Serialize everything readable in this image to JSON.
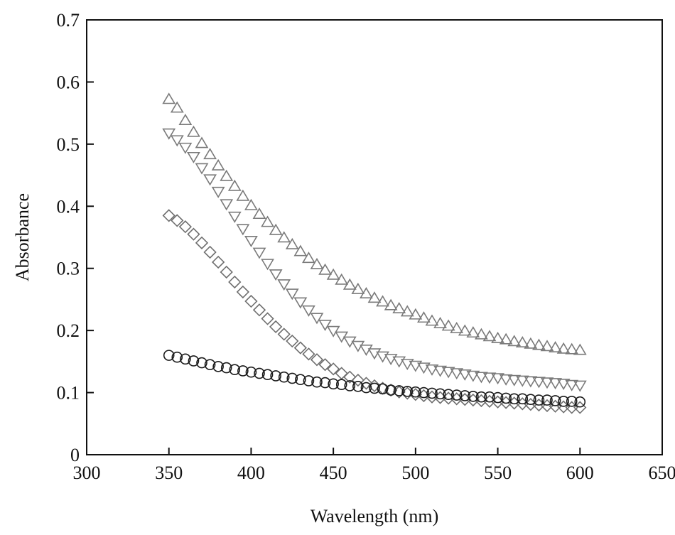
{
  "chart_data": {
    "type": "scatter",
    "title": "",
    "xlabel": "Wavelength (nm)",
    "ylabel": "Absorbance",
    "xlim": [
      300,
      650
    ],
    "ylim": [
      0,
      0.7
    ],
    "xticks": [
      300,
      350,
      400,
      450,
      500,
      550,
      600,
      650
    ],
    "yticks": [
      0,
      0.1,
      0.2,
      0.3,
      0.4,
      0.5,
      0.6,
      0.7
    ],
    "xtick_labels": [
      "300",
      "350",
      "400",
      "450",
      "500",
      "550",
      "600",
      "650"
    ],
    "ytick_labels": [
      "0",
      "0.1",
      "0.2",
      "0.3",
      "0.4",
      "0.5",
      "0.6",
      "0.7"
    ],
    "grid": false,
    "legend": "none",
    "x": [
      350,
      355,
      360,
      365,
      370,
      375,
      380,
      385,
      390,
      395,
      400,
      405,
      410,
      415,
      420,
      425,
      430,
      435,
      440,
      445,
      450,
      455,
      460,
      465,
      470,
      475,
      480,
      485,
      490,
      495,
      500,
      505,
      510,
      515,
      520,
      525,
      530,
      535,
      540,
      545,
      550,
      555,
      560,
      565,
      570,
      575,
      580,
      585,
      590,
      595,
      600
    ],
    "series": [
      {
        "marker": "triangle-up",
        "color": "#7a7a7a",
        "values": [
          0.572,
          0.558,
          0.538,
          0.519,
          0.501,
          0.483,
          0.465,
          0.448,
          0.432,
          0.416,
          0.401,
          0.387,
          0.374,
          0.361,
          0.349,
          0.338,
          0.327,
          0.316,
          0.306,
          0.297,
          0.289,
          0.281,
          0.273,
          0.266,
          0.259,
          0.252,
          0.246,
          0.24,
          0.235,
          0.23,
          0.225,
          0.22,
          0.215,
          0.211,
          0.207,
          0.203,
          0.199,
          0.196,
          0.193,
          0.19,
          0.187,
          0.185,
          0.182,
          0.18,
          0.178,
          0.176,
          0.174,
          0.172,
          0.17,
          0.169,
          0.168
        ]
      },
      {
        "marker": "triangle-down",
        "color": "#7a7a7a",
        "values": [
          0.518,
          0.507,
          0.495,
          0.48,
          0.462,
          0.444,
          0.424,
          0.404,
          0.384,
          0.364,
          0.345,
          0.326,
          0.308,
          0.291,
          0.275,
          0.26,
          0.246,
          0.233,
          0.221,
          0.21,
          0.2,
          0.191,
          0.183,
          0.176,
          0.17,
          0.164,
          0.159,
          0.155,
          0.151,
          0.147,
          0.144,
          0.141,
          0.138,
          0.136,
          0.134,
          0.132,
          0.13,
          0.128,
          0.126,
          0.125,
          0.124,
          0.122,
          0.121,
          0.12,
          0.119,
          0.118,
          0.117,
          0.116,
          0.115,
          0.113,
          0.112
        ]
      },
      {
        "marker": "diamond",
        "color": "#6e6e6e",
        "values": [
          0.385,
          0.377,
          0.367,
          0.355,
          0.341,
          0.326,
          0.31,
          0.294,
          0.278,
          0.262,
          0.247,
          0.233,
          0.219,
          0.206,
          0.194,
          0.183,
          0.172,
          0.162,
          0.153,
          0.145,
          0.138,
          0.131,
          0.125,
          0.12,
          0.115,
          0.111,
          0.107,
          0.104,
          0.101,
          0.099,
          0.097,
          0.095,
          0.093,
          0.092,
          0.091,
          0.09,
          0.089,
          0.088,
          0.087,
          0.086,
          0.085,
          0.084,
          0.083,
          0.082,
          0.081,
          0.08,
          0.079,
          0.078,
          0.077,
          0.076,
          0.076
        ]
      },
      {
        "marker": "circle",
        "color": "#1a1a1a",
        "values": [
          0.16,
          0.157,
          0.154,
          0.151,
          0.148,
          0.145,
          0.142,
          0.14,
          0.137,
          0.135,
          0.133,
          0.131,
          0.129,
          0.127,
          0.125,
          0.123,
          0.121,
          0.119,
          0.117,
          0.116,
          0.114,
          0.113,
          0.111,
          0.11,
          0.108,
          0.107,
          0.106,
          0.104,
          0.103,
          0.102,
          0.101,
          0.1,
          0.099,
          0.098,
          0.097,
          0.096,
          0.095,
          0.094,
          0.093,
          0.093,
          0.092,
          0.091,
          0.09,
          0.09,
          0.089,
          0.088,
          0.088,
          0.087,
          0.086,
          0.086,
          0.085
        ]
      }
    ]
  }
}
